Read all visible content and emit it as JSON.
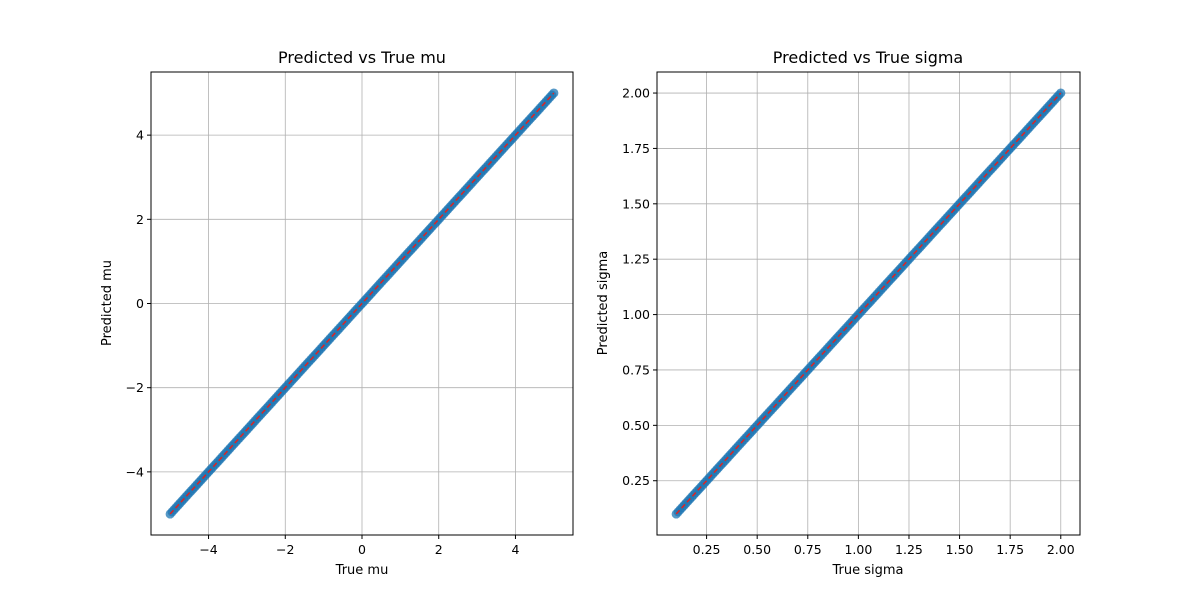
{
  "chart_data": [
    {
      "type": "scatter",
      "title": "Predicted vs True mu",
      "xlabel": "True mu",
      "ylabel": "Predicted mu",
      "xlim": [
        -5.5,
        5.5
      ],
      "ylim": [
        -5.5,
        5.5
      ],
      "xticks": [
        -4,
        -2,
        0,
        2,
        4
      ],
      "yticks": [
        -4,
        -2,
        0,
        2,
        4
      ],
      "xtick_labels": [
        "−4",
        "−2",
        "0",
        "2",
        "4"
      ],
      "ytick_labels": [
        "−4",
        "−2",
        "0",
        "2",
        "4"
      ],
      "grid": true,
      "range": [
        -5,
        5
      ],
      "point_count": 200,
      "point_color": "#1f77b4",
      "reference_line": {
        "from": -5,
        "to": 5,
        "style": "dashed",
        "color": "#d62728"
      }
    },
    {
      "type": "scatter",
      "title": "Predicted vs True sigma",
      "xlabel": "True sigma",
      "ylabel": "Predicted sigma",
      "xlim": [
        0.005,
        2.095
      ],
      "ylim": [
        0.005,
        2.095
      ],
      "xticks": [
        0.25,
        0.5,
        0.75,
        1.0,
        1.25,
        1.5,
        1.75,
        2.0
      ],
      "yticks": [
        0.25,
        0.5,
        0.75,
        1.0,
        1.25,
        1.5,
        1.75,
        2.0
      ],
      "xtick_labels": [
        "0.25",
        "0.50",
        "0.75",
        "1.00",
        "1.25",
        "1.50",
        "1.75",
        "2.00"
      ],
      "ytick_labels": [
        "0.25",
        "0.50",
        "0.75",
        "1.00",
        "1.25",
        "1.50",
        "1.75",
        "2.00"
      ],
      "grid": true,
      "range": [
        0.1,
        2.0
      ],
      "point_count": 200,
      "point_color": "#1f77b4",
      "reference_line": {
        "from": 0.1,
        "to": 2.0,
        "style": "dashed",
        "color": "#d62728"
      }
    }
  ]
}
